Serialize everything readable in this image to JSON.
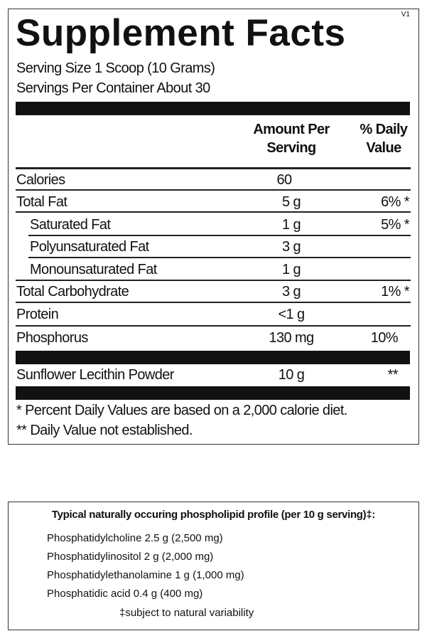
{
  "panel": {
    "title": "Supplement Facts",
    "version": "V1",
    "serving_size": "Serving Size  1 Scoop (10 Grams)",
    "servings_per_container": "Servings Per Container  About 30",
    "header": {
      "amount_line1": "Amount Per",
      "amount_line2": "Serving",
      "dv_line1": "% Daily",
      "dv_line2": "Value"
    },
    "rows": [
      [
        "Calories",
        "60",
        ""
      ],
      [
        "Total Fat",
        "5 g",
        "6% *"
      ],
      [
        "Saturated Fat",
        "1 g",
        "5% *"
      ],
      [
        "Polyunsaturated Fat",
        "3 g",
        ""
      ],
      [
        "Monounsaturated Fat",
        "1 g",
        ""
      ],
      [
        "Total Carbohydrate",
        "3 g",
        "1% *"
      ],
      [
        "Protein",
        "<1 g",
        ""
      ],
      [
        "Phosphorus",
        "130 mg",
        "10%"
      ],
      [
        "Sunflower Lecithin Powder",
        "10 g",
        "**"
      ]
    ],
    "footnotes": [
      "* Percent Daily Values are based on a 2,000 calorie diet.",
      "** Daily Value not established."
    ]
  },
  "profile": {
    "title": "Typical naturally occuring phospholipid profile (per 10 g serving)‡:",
    "items": [
      "Phosphatidylcholine 2.5 g (2,500 mg)",
      "Phosphatidylinositol 2 g (2,000 mg)",
      "Phosphatidylethanolamine 1 g (1,000 mg)",
      "Phosphatidic acid 0.4 g (400 mg)"
    ],
    "note": "‡subject to natural variability"
  }
}
